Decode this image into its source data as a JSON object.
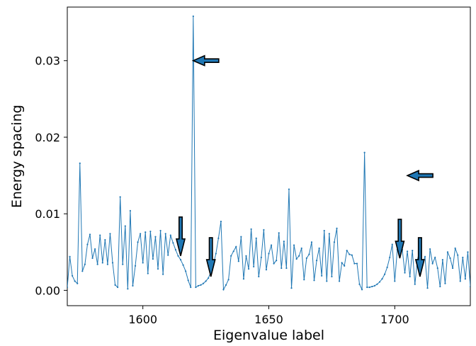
{
  "chart_data": {
    "type": "line",
    "title": "",
    "xlabel": "Eigenvalue label",
    "ylabel": "Energy spacing",
    "xlim": [
      1570,
      1730
    ],
    "ylim": [
      -0.002,
      0.037
    ],
    "grid": false,
    "legend": "none",
    "x_ticks": [
      1600,
      1650,
      1700
    ],
    "x_tick_labels": [
      "1600",
      "1650",
      "1700"
    ],
    "y_ticks": [
      0.0,
      0.01,
      0.02,
      0.03
    ],
    "y_tick_labels": [
      "0.00",
      "0.01",
      "0.02",
      "0.03"
    ],
    "series": [
      {
        "color": "#1f77b4",
        "marker": "dot",
        "x_start": 1570,
        "x_step": 1,
        "values": [
          0.0004,
          0.0044,
          0.0019,
          0.0012,
          0.0009,
          0.0166,
          0.0025,
          0.0034,
          0.006,
          0.0073,
          0.0042,
          0.0054,
          0.0034,
          0.0072,
          0.0036,
          0.0066,
          0.0034,
          0.0074,
          0.0036,
          0.0007,
          0.0004,
          0.0122,
          0.0034,
          0.0084,
          0.0002,
          0.0104,
          0.0006,
          0.0032,
          0.0063,
          0.0074,
          0.0036,
          0.0076,
          0.0022,
          0.0077,
          0.0041,
          0.007,
          0.0028,
          0.0078,
          0.0021,
          0.0074,
          0.0046,
          0.0072,
          0.0062,
          0.0053,
          0.0045,
          0.004,
          0.0033,
          0.0025,
          0.0013,
          0.0004,
          0.0358,
          0.0004,
          0.0006,
          0.0007,
          0.0009,
          0.0012,
          0.0016,
          0.0024,
          0.0034,
          0.0048,
          0.0068,
          0.009,
          0.0001,
          0.0007,
          0.0014,
          0.0045,
          0.0051,
          0.0057,
          0.0038,
          0.007,
          0.0015,
          0.0045,
          0.0028,
          0.008,
          0.0031,
          0.0068,
          0.0018,
          0.0043,
          0.0079,
          0.0027,
          0.0048,
          0.0059,
          0.0035,
          0.0039,
          0.0075,
          0.0029,
          0.0064,
          0.0029,
          0.0132,
          0.0003,
          0.0059,
          0.0041,
          0.0045,
          0.0055,
          0.0014,
          0.0042,
          0.0047,
          0.0063,
          0.0013,
          0.0039,
          0.0055,
          0.0019,
          0.0078,
          0.0012,
          0.0074,
          0.0018,
          0.0063,
          0.0081,
          0.0012,
          0.0036,
          0.0032,
          0.0052,
          0.0047,
          0.0046,
          0.0035,
          0.0035,
          0.0008,
          0.0001,
          0.018,
          0.0004,
          0.0004,
          0.0005,
          0.0006,
          0.0008,
          0.0011,
          0.0015,
          0.0021,
          0.003,
          0.0043,
          0.006,
          0.0012,
          0.0053,
          0.0045,
          0.0053,
          0.0023,
          0.0051,
          0.0018,
          0.0052,
          0.0008,
          0.004,
          0.0054,
          0.0035,
          0.0044,
          0.0003,
          0.0054,
          0.0035,
          0.0043,
          0.0029,
          0.0005,
          0.004,
          0.0009,
          0.005,
          0.0042,
          0.0029,
          0.0055,
          0.0046,
          0.0012,
          0.0043,
          0.0015,
          0.005,
          0.0005
        ]
      }
    ],
    "annotations": [
      {
        "type": "arrow",
        "direction": "left",
        "x": 1620,
        "y": 0.03
      },
      {
        "type": "arrow",
        "direction": "left",
        "x": 1705,
        "y": 0.015
      },
      {
        "type": "arrow",
        "direction": "down",
        "x": 1615,
        "y": 0.0045
      },
      {
        "type": "arrow",
        "direction": "down",
        "x": 1627,
        "y": 0.0018
      },
      {
        "type": "arrow",
        "direction": "down",
        "x": 1702,
        "y": 0.0042
      },
      {
        "type": "arrow",
        "direction": "down",
        "x": 1710,
        "y": 0.0018
      }
    ]
  }
}
